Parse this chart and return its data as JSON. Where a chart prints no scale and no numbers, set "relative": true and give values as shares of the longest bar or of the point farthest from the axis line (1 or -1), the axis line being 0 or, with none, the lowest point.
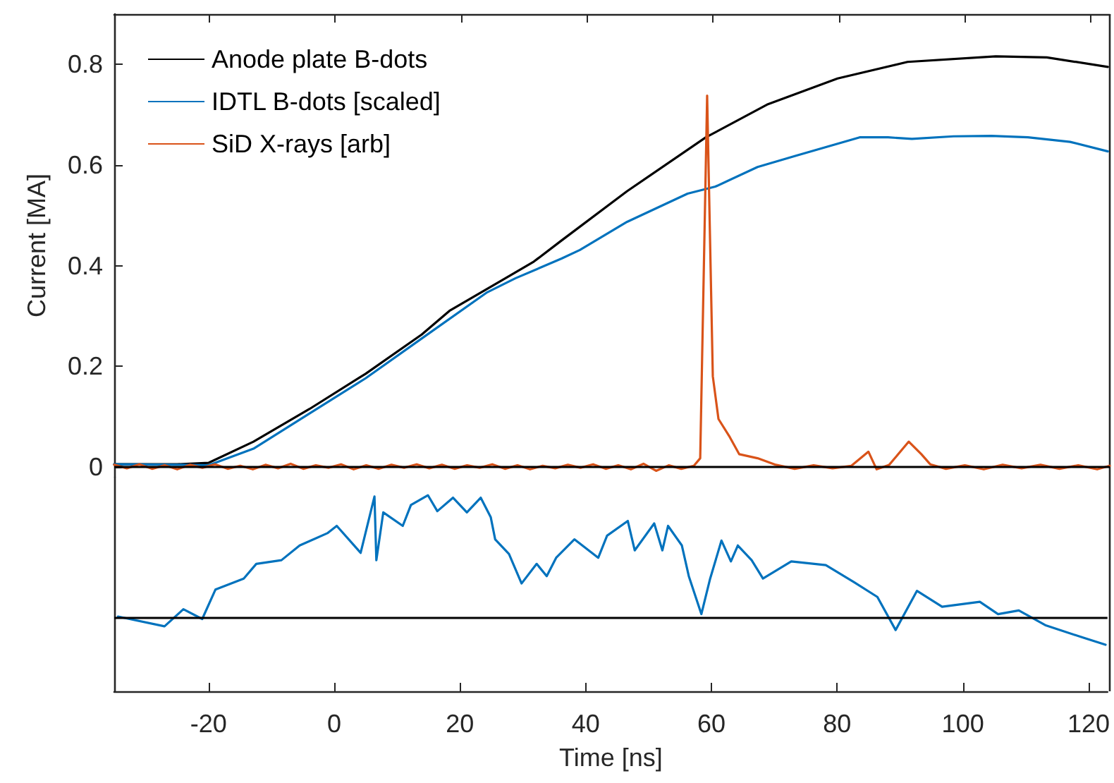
{
  "chart_data": [
    {
      "type": "line",
      "ylabel": "Current [MA]",
      "xlim": [
        -35,
        123
      ],
      "xticks": [
        -20,
        0,
        20,
        40,
        60,
        80,
        100,
        120
      ],
      "ylim": [
        -0.02,
        0.9
      ],
      "yticks": [
        0,
        0.2,
        0.4,
        0.6,
        0.8
      ],
      "tick_labels": "y",
      "legend": "top left",
      "marker": "none",
      "line_style": "solid",
      "ref_lines": [
        {
          "axis": "y",
          "value": 0,
          "color": "#000000"
        }
      ],
      "series": [
        {
          "name": "Anode plate B-dots",
          "color": "#000000",
          "x": [
            -35,
            -25,
            -20,
            -12.9,
            -4,
            4.9,
            13.8,
            18.2,
            27.1,
            31.6,
            36,
            46.4,
            58.9,
            68.6,
            79.8,
            90.9,
            104.9,
            113,
            122.7
          ],
          "values": [
            0.005,
            0.005,
            0.008,
            0.05,
            0.115,
            0.185,
            0.263,
            0.31,
            0.375,
            0.408,
            0.45,
            0.548,
            0.655,
            0.72,
            0.772,
            0.805,
            0.816,
            0.814,
            0.795
          ]
        },
        {
          "name": "IDTL B-dots [scaled]",
          "color": "#0072bd",
          "x": [
            -35,
            -25,
            -20,
            -12.9,
            -4,
            4.9,
            13.8,
            24.2,
            28.7,
            36,
            38.9,
            46.4,
            56,
            60.4,
            67.1,
            73.1,
            83.3,
            87.8,
            91.6,
            98.2,
            104.2,
            110,
            116.7,
            122.7
          ],
          "values": [
            0.005,
            0.004,
            0.003,
            0.036,
            0.106,
            0.176,
            0.255,
            0.347,
            0.375,
            0.414,
            0.431,
            0.487,
            0.543,
            0.557,
            0.596,
            0.618,
            0.655,
            0.655,
            0.652,
            0.657,
            0.658,
            0.655,
            0.646,
            0.627
          ]
        },
        {
          "name": "SiD X-rays [arb]",
          "color": "#d95319",
          "x": [
            -35,
            -33,
            -31,
            -29,
            -27,
            -25,
            -23,
            -21,
            -19,
            -17,
            -15,
            -13,
            -11,
            -9,
            -7,
            -5,
            -3,
            -1,
            1,
            3,
            5,
            7,
            9,
            11,
            13,
            15,
            17,
            19,
            21,
            23,
            25,
            27,
            29,
            31,
            33,
            35,
            37,
            39,
            41,
            43,
            45,
            47,
            49,
            51,
            53,
            55,
            57,
            58,
            59.1,
            60,
            60.9,
            62.7,
            64.2,
            67.1,
            70,
            73,
            76,
            79,
            82,
            84.7,
            86,
            88,
            91.1,
            93.1,
            94.5,
            97,
            100,
            103,
            106,
            109,
            112,
            115,
            118,
            121,
            123
          ],
          "values": [
            0.004,
            -0.003,
            0.005,
            -0.004,
            0.003,
            -0.005,
            0.004,
            -0.002,
            0.005,
            -0.004,
            0.002,
            -0.005,
            0.004,
            -0.003,
            0.006,
            -0.004,
            0.003,
            -0.002,
            0.005,
            -0.005,
            0.003,
            -0.004,
            0.004,
            -0.002,
            0.005,
            -0.003,
            0.004,
            -0.004,
            0.003,
            -0.002,
            0.005,
            -0.004,
            0.003,
            -0.005,
            0.002,
            -0.003,
            0.004,
            -0.002,
            0.005,
            -0.004,
            0.003,
            -0.005,
            0.006,
            -0.008,
            0.003,
            -0.004,
            0.002,
            0.017,
            0.738,
            0.18,
            0.095,
            0.059,
            0.025,
            0.017,
            0.004,
            -0.004,
            0.003,
            -0.003,
            0.002,
            0.03,
            -0.005,
            0.004,
            0.05,
            0.025,
            0.005,
            -0.004,
            0.003,
            -0.005,
            0.004,
            -0.003,
            0.004,
            -0.004,
            0.003,
            -0.005,
            0.002
          ]
        }
      ]
    },
    {
      "type": "line",
      "xlabel": "Time [ns]",
      "xlim": [
        -35,
        123
      ],
      "xticks": [
        -20,
        0,
        20,
        40,
        60,
        80,
        100,
        120
      ],
      "relative": true,
      "tick_labels": "x",
      "marker": "none",
      "line_style": "solid",
      "ref_lines": [
        {
          "axis": "y",
          "value": 0,
          "color": "#000000"
        }
      ],
      "series": [
        {
          "color": "#0072bd",
          "x": [
            -34.4,
            -27,
            -24,
            -21,
            -18.9,
            -14.4,
            -12.4,
            -8.4,
            -5.5,
            -1.1,
            0.4,
            4.2,
            6.4,
            6.7,
            7.8,
            10.9,
            12.2,
            14.9,
            16.4,
            18.9,
            21.1,
            23.3,
            24.9,
            25.6,
            27.8,
            29.8,
            32.2,
            33.8,
            35.3,
            38.2,
            42,
            43.4,
            46.7,
            47.8,
            50.9,
            52.2,
            53.1,
            55.3,
            56.4,
            58.4,
            59.8,
            61.6,
            63.1,
            64.2,
            66.4,
            68.2,
            72.7,
            78.2,
            82.7,
            86.4,
            89.3,
            92.7,
            96.7,
            102.7,
            105.6,
            108.9,
            113.1,
            119,
            122.7
          ],
          "values": [
            0.01,
            -0.07,
            0.07,
            -0.01,
            0.23,
            0.32,
            0.44,
            0.47,
            0.59,
            0.69,
            0.75,
            0.53,
            0.99,
            0.47,
            0.86,
            0.75,
            0.92,
            1.0,
            0.87,
            0.98,
            0.86,
            0.98,
            0.82,
            0.64,
            0.52,
            0.28,
            0.44,
            0.34,
            0.49,
            0.64,
            0.49,
            0.67,
            0.79,
            0.55,
            0.77,
            0.55,
            0.75,
            0.59,
            0.34,
            0.03,
            0.32,
            0.63,
            0.46,
            0.59,
            0.47,
            0.32,
            0.46,
            0.43,
            0.29,
            0.17,
            -0.1,
            0.22,
            0.09,
            0.13,
            0.03,
            0.06,
            -0.06,
            -0.16,
            -0.22
          ]
        }
      ]
    }
  ]
}
